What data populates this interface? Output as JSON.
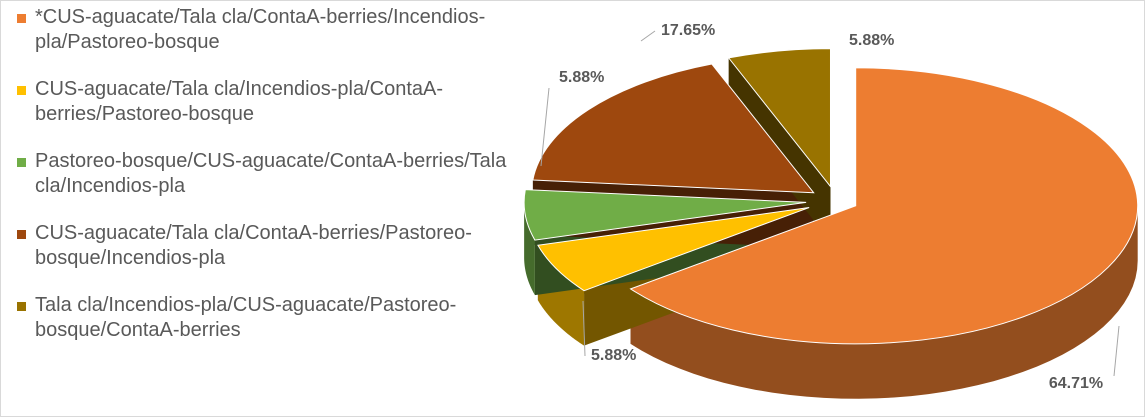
{
  "chart_data": {
    "type": "pie",
    "categories": [
      "*CUS-aguacate/Tala cla/ContaA-berries/Incendios-pla/Pastoreo-bosque",
      "CUS-aguacate/Tala cla/Incendios-pla/ContaA-berries/Pastoreo-bosque",
      "Pastoreo-bosque/CUS-aguacate/ContaA-berries/Tala cla/Incendios-pla",
      "CUS-aguacate/Tala cla/ContaA-berries/Pastoreo-bosque/Incendios-pla",
      "Tala cla/Incendios-pla/CUS-aguacate/Pastoreo-bosque/ContaA-berries"
    ],
    "values": [
      64.71,
      5.88,
      5.88,
      17.65,
      5.88
    ],
    "value_labels": [
      "64.71%",
      "5.88%",
      "5.88%",
      "17.65%",
      "5.88%"
    ],
    "colors": [
      "#ED7D31",
      "#FFC000",
      "#70AD47",
      "#9E480E",
      "#997300"
    ],
    "legend": "left"
  }
}
